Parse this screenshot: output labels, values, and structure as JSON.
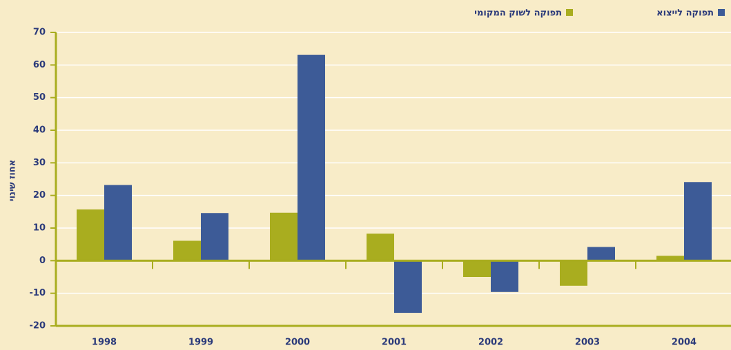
{
  "chart_data": {
    "type": "bar",
    "y_label": "אחוז שינוי",
    "categories": [
      "1998",
      "1999",
      "2000",
      "2001",
      "2002",
      "2003",
      "2004"
    ],
    "series": [
      {
        "name": "תפוקה לשוק המקומי",
        "color": "#a9ad1f",
        "values": [
          15.7,
          6.1,
          14.7,
          8.3,
          -5,
          -7.7,
          1.5
        ]
      },
      {
        "name": "תפוקה לייצוא",
        "color": "#3d5b97",
        "values": [
          23.2,
          14.6,
          63.1,
          -16,
          -9.6,
          4.2,
          24.1
        ]
      }
    ],
    "ylim": [
      -20,
      70
    ],
    "yticks": [
      -20,
      -10,
      0,
      10,
      20,
      30,
      40,
      50,
      60,
      70
    ],
    "grid": true
  }
}
